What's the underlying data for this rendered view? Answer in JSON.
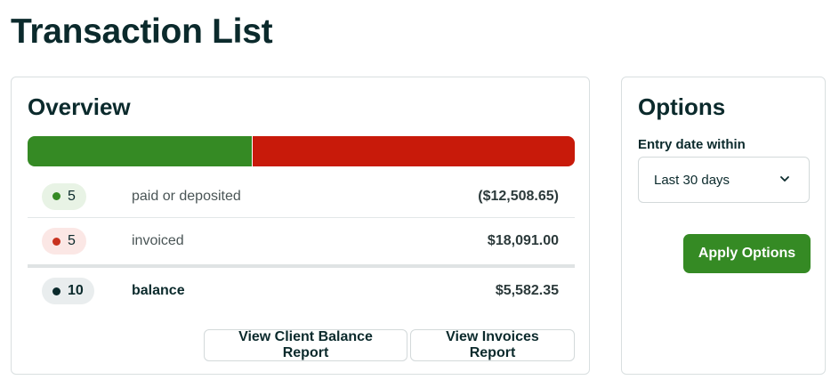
{
  "page": {
    "title": "Transaction List"
  },
  "overview": {
    "title": "Overview",
    "bar": {
      "paid_fraction": 0.409,
      "paid_color": "#358a24",
      "invoiced_color": "#c81a0a"
    },
    "rows": [
      {
        "count": "5",
        "label": "paid or deposited",
        "amount": "($12,508.65)",
        "status": "paid"
      },
      {
        "count": "5",
        "label": "invoiced",
        "amount": "$18,091.00",
        "status": "invoiced"
      },
      {
        "count": "10",
        "label": "balance",
        "amount": "$5,582.35",
        "status": "balance"
      }
    ],
    "buttons": {
      "client_balance": "View Client Balance Report",
      "invoices": "View Invoices Report"
    }
  },
  "options": {
    "title": "Options",
    "entry_date_label": "Entry date within",
    "entry_date_value": "Last 30 days",
    "apply_label": "Apply Options",
    "accent_color": "#358a24"
  }
}
